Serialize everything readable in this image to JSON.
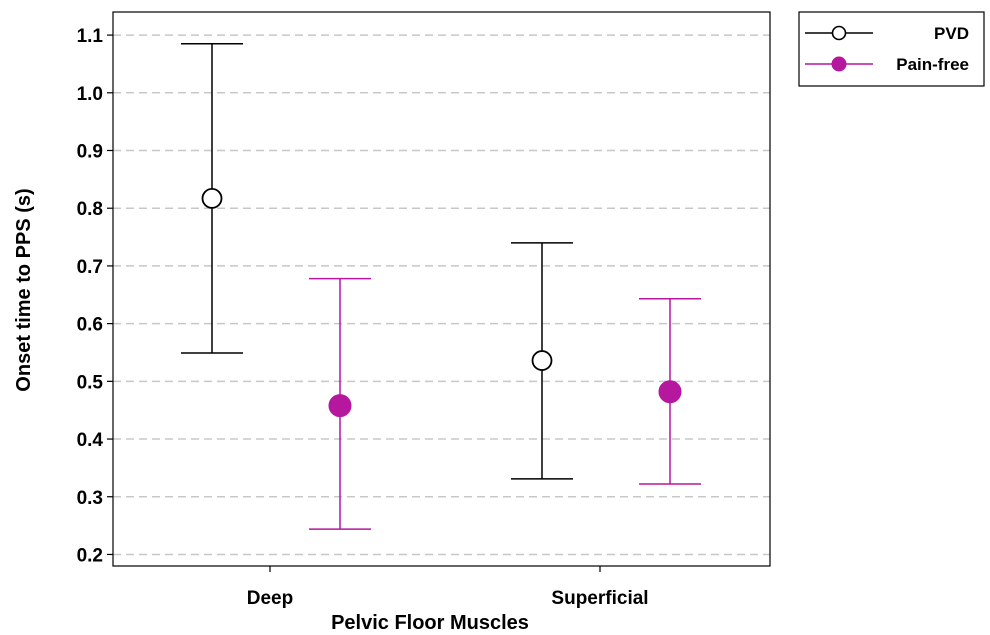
{
  "chart_data": {
    "type": "scatter",
    "subtype": "point-with-error-bars",
    "title": "",
    "xlabel": "Pelvic Floor Muscles",
    "ylabel": "Onset time to PPS (s)",
    "categories": [
      "Deep",
      "Superficial"
    ],
    "ylim": [
      0.18,
      1.14
    ],
    "yticks": [
      0.2,
      0.3,
      0.4,
      0.5,
      0.6,
      0.7,
      0.8,
      0.9,
      1.0,
      1.1
    ],
    "ytick_labels": [
      "0.2",
      "0.3",
      "0.4",
      "0.5",
      "0.6",
      "0.7",
      "0.8",
      "0.9",
      "1.0",
      "1.1"
    ],
    "grid": "horizontal dashed",
    "legend_position": "outside top-right",
    "series": [
      {
        "name": "PVD",
        "color": "#000000",
        "marker": "open-circle",
        "values": [
          0.817,
          0.536
        ],
        "lower": [
          0.549,
          0.331
        ],
        "upper": [
          1.085,
          0.74
        ]
      },
      {
        "name": "Pain-free",
        "color": "#b5179e",
        "marker": "filled-circle",
        "values": [
          0.458,
          0.482
        ],
        "lower": [
          0.244,
          0.322
        ],
        "upper": [
          0.678,
          0.643
        ]
      }
    ]
  }
}
